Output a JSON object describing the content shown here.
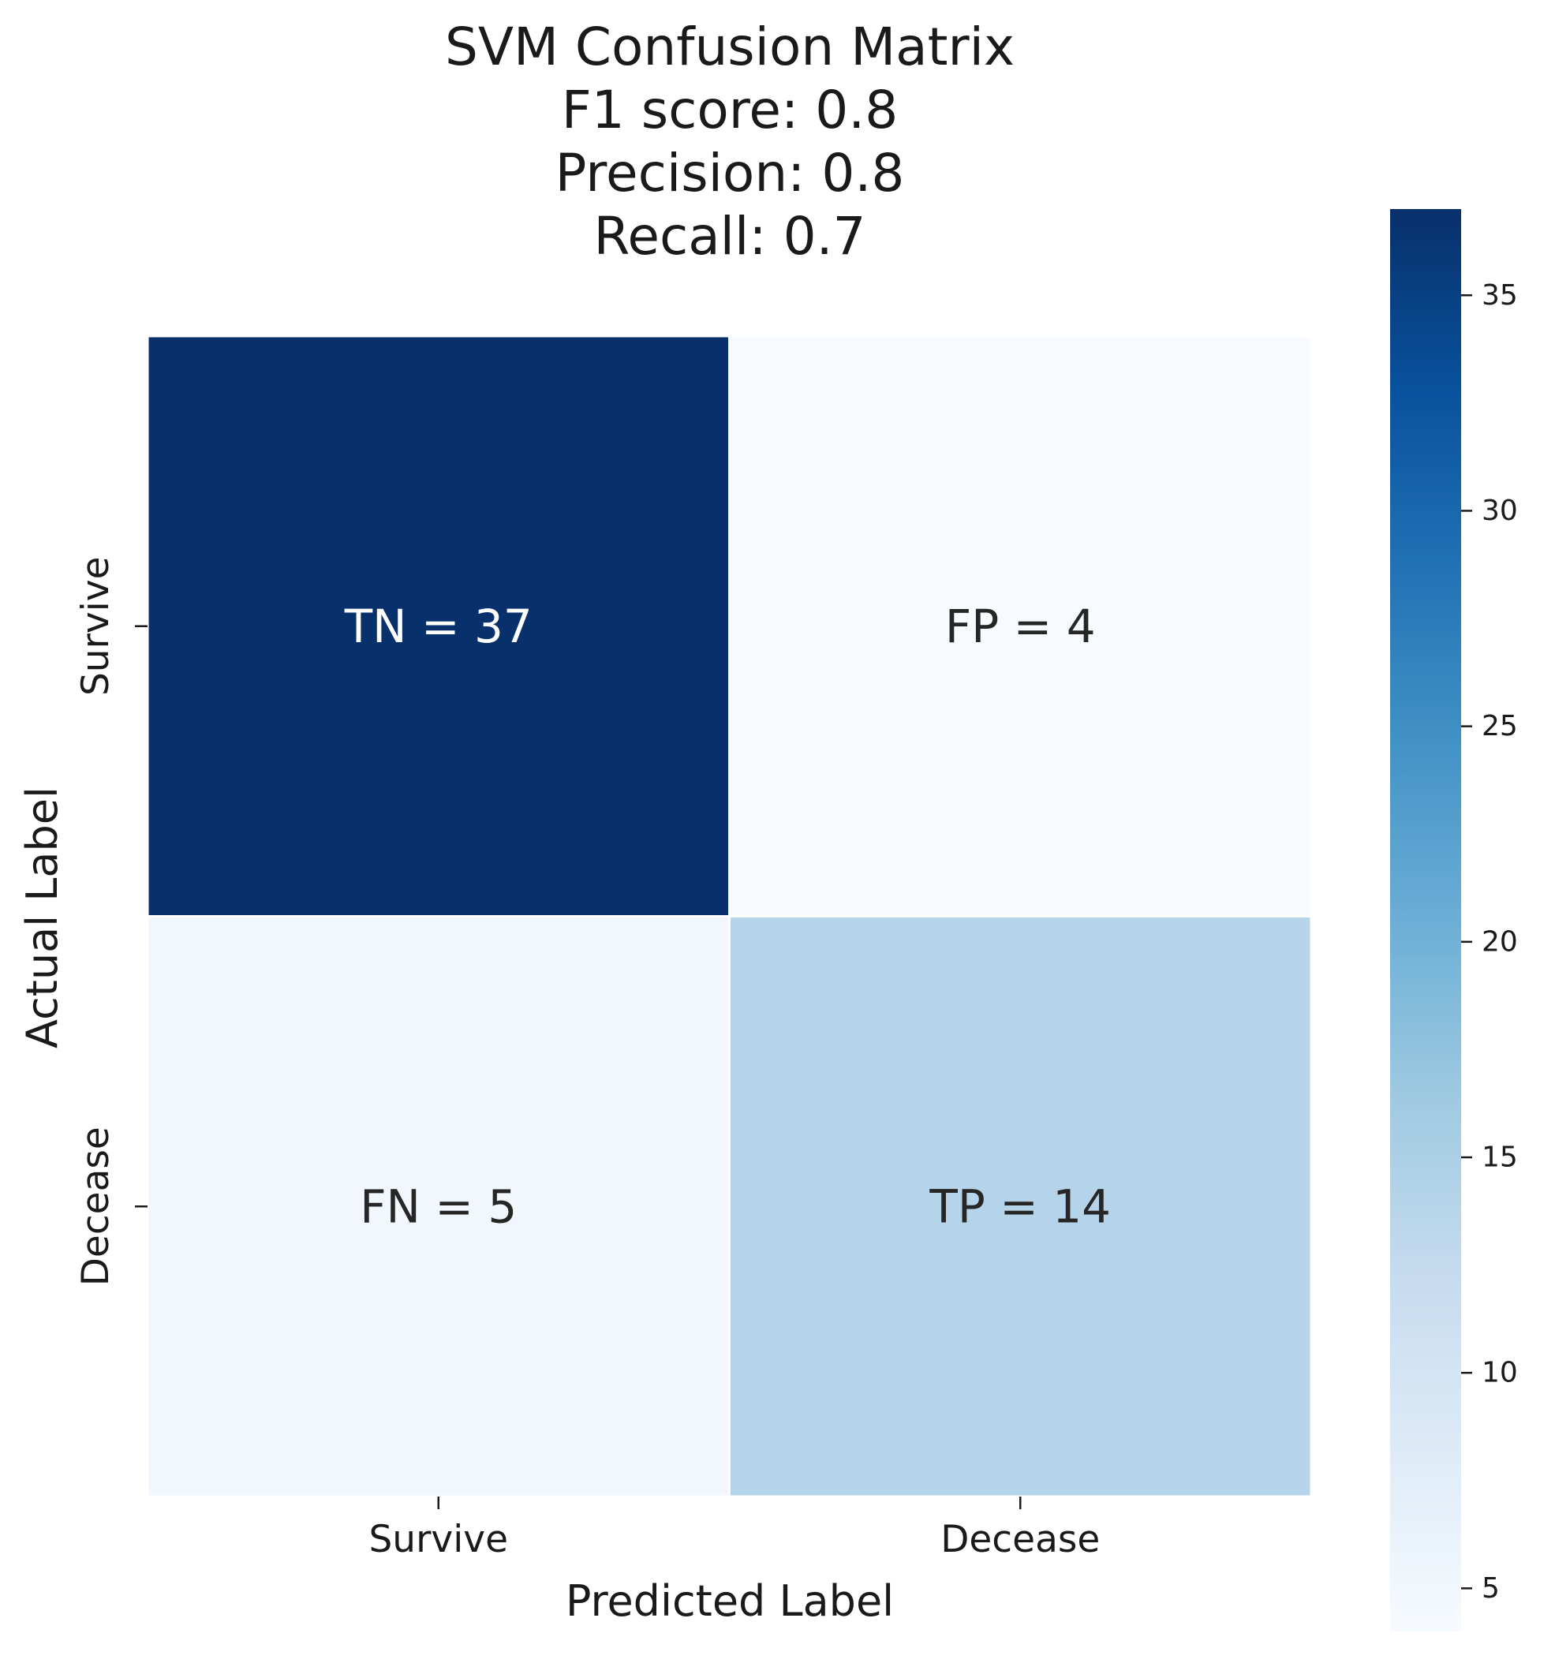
{
  "chart_data": {
    "type": "heatmap",
    "title_lines": [
      "SVM Confusion Matrix",
      "F1 score: 0.8",
      "Precision: 0.8",
      "Recall: 0.7"
    ],
    "xlabel": "Predicted Label",
    "ylabel": "Actual Label",
    "x_categories": [
      "Survive",
      "Decease"
    ],
    "y_categories": [
      "Survive",
      "Decease"
    ],
    "values": [
      [
        37,
        4
      ],
      [
        5,
        14
      ]
    ],
    "cell_labels": [
      [
        "TN = 37",
        "FP = 4"
      ],
      [
        "FN = 5",
        "TP = 14"
      ]
    ],
    "colormap": "Blues",
    "colorbar": {
      "min": 4,
      "max": 37,
      "ticks": [
        5,
        10,
        15,
        20,
        25,
        30,
        35
      ]
    }
  }
}
